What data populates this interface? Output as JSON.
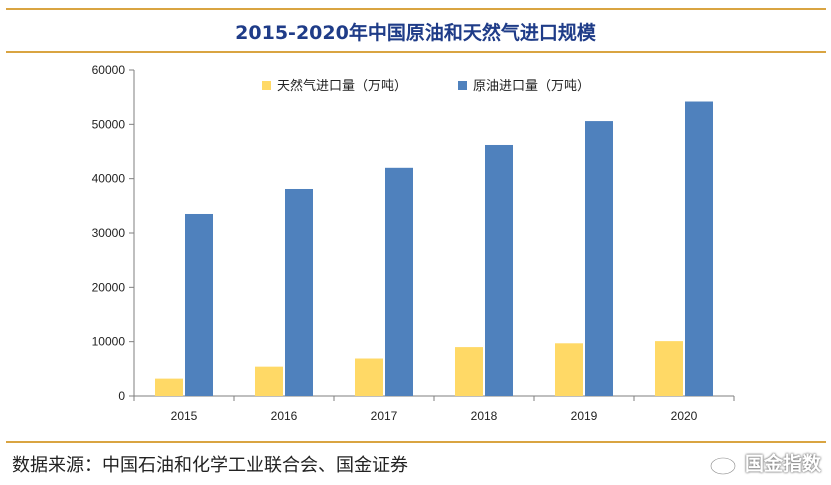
{
  "header": {
    "title": "2015-2020年中国原油和天然气进口规模"
  },
  "footer": {
    "source": "数据来源：中国石油和化学工业联合会、国金证券",
    "watermark": "国金指数"
  },
  "colors": {
    "rule": "#d9a441",
    "title": "#1f3c88",
    "gas": "#ffd966",
    "oil": "#4f81bd"
  },
  "chart_data": {
    "type": "bar",
    "categories": [
      "2015",
      "2016",
      "2017",
      "2018",
      "2019",
      "2020"
    ],
    "series": [
      {
        "name": "天然气进口量（万吨）",
        "values": [
          3200,
          5400,
          6900,
          9000,
          9700,
          10100
        ]
      },
      {
        "name": "原油进口量（万吨）",
        "values": [
          33500,
          38100,
          42000,
          46200,
          50600,
          54200
        ]
      }
    ],
    "y_ticks": [
      "0",
      "10000",
      "20000",
      "30000",
      "40000",
      "50000",
      "60000"
    ],
    "ylim": [
      0,
      60000
    ],
    "legend_position": "top",
    "grid": false
  }
}
